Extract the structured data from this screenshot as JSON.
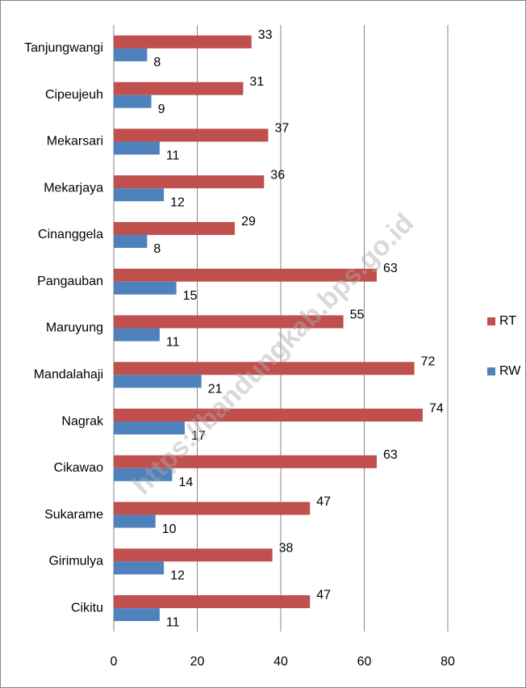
{
  "chart_data": {
    "type": "bar",
    "orientation": "horizontal",
    "categories": [
      "Tanjungwangi",
      "Cipeujeuh",
      "Mekarsari",
      "Mekarjaya",
      "Cinanggela",
      "Pangauban",
      "Maruyung",
      "Mandalahaji",
      "Nagrak",
      "Cikawao",
      "Sukarame",
      "Girimulya",
      "Cikitu"
    ],
    "series": [
      {
        "name": "RT",
        "color": "#c0504d",
        "values": [
          33,
          31,
          37,
          36,
          29,
          63,
          55,
          72,
          74,
          63,
          47,
          38,
          47
        ]
      },
      {
        "name": "RW",
        "color": "#4f81bd",
        "values": [
          8,
          9,
          11,
          12,
          8,
          15,
          11,
          21,
          17,
          14,
          10,
          12,
          11
        ]
      }
    ],
    "xlim": [
      0,
      80
    ],
    "xticks": [
      0,
      20,
      40,
      60,
      80
    ],
    "grid": true,
    "legend": "right",
    "watermark": "https://bandungkab.bps.go.id"
  }
}
